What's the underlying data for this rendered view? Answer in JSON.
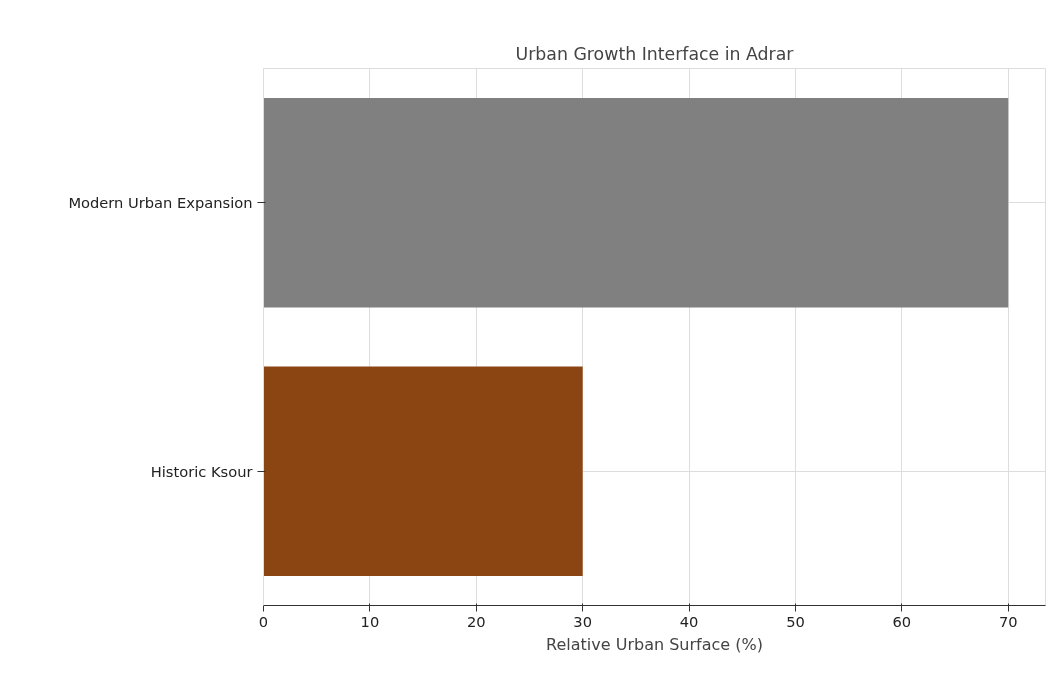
{
  "chart_data": {
    "type": "bar",
    "orientation": "horizontal",
    "title": "Urban Growth Interface in Adrar",
    "xlabel": "Relative Urban Surface (%)",
    "categories": [
      "Modern Urban Expansion",
      "Historic Ksour"
    ],
    "values": [
      70,
      30
    ],
    "colors": [
      "#808080",
      "#8b4513"
    ],
    "xlim": [
      0,
      73.5
    ],
    "xticks": [
      0,
      10,
      20,
      30,
      40,
      50,
      60,
      70
    ],
    "grid": true
  }
}
